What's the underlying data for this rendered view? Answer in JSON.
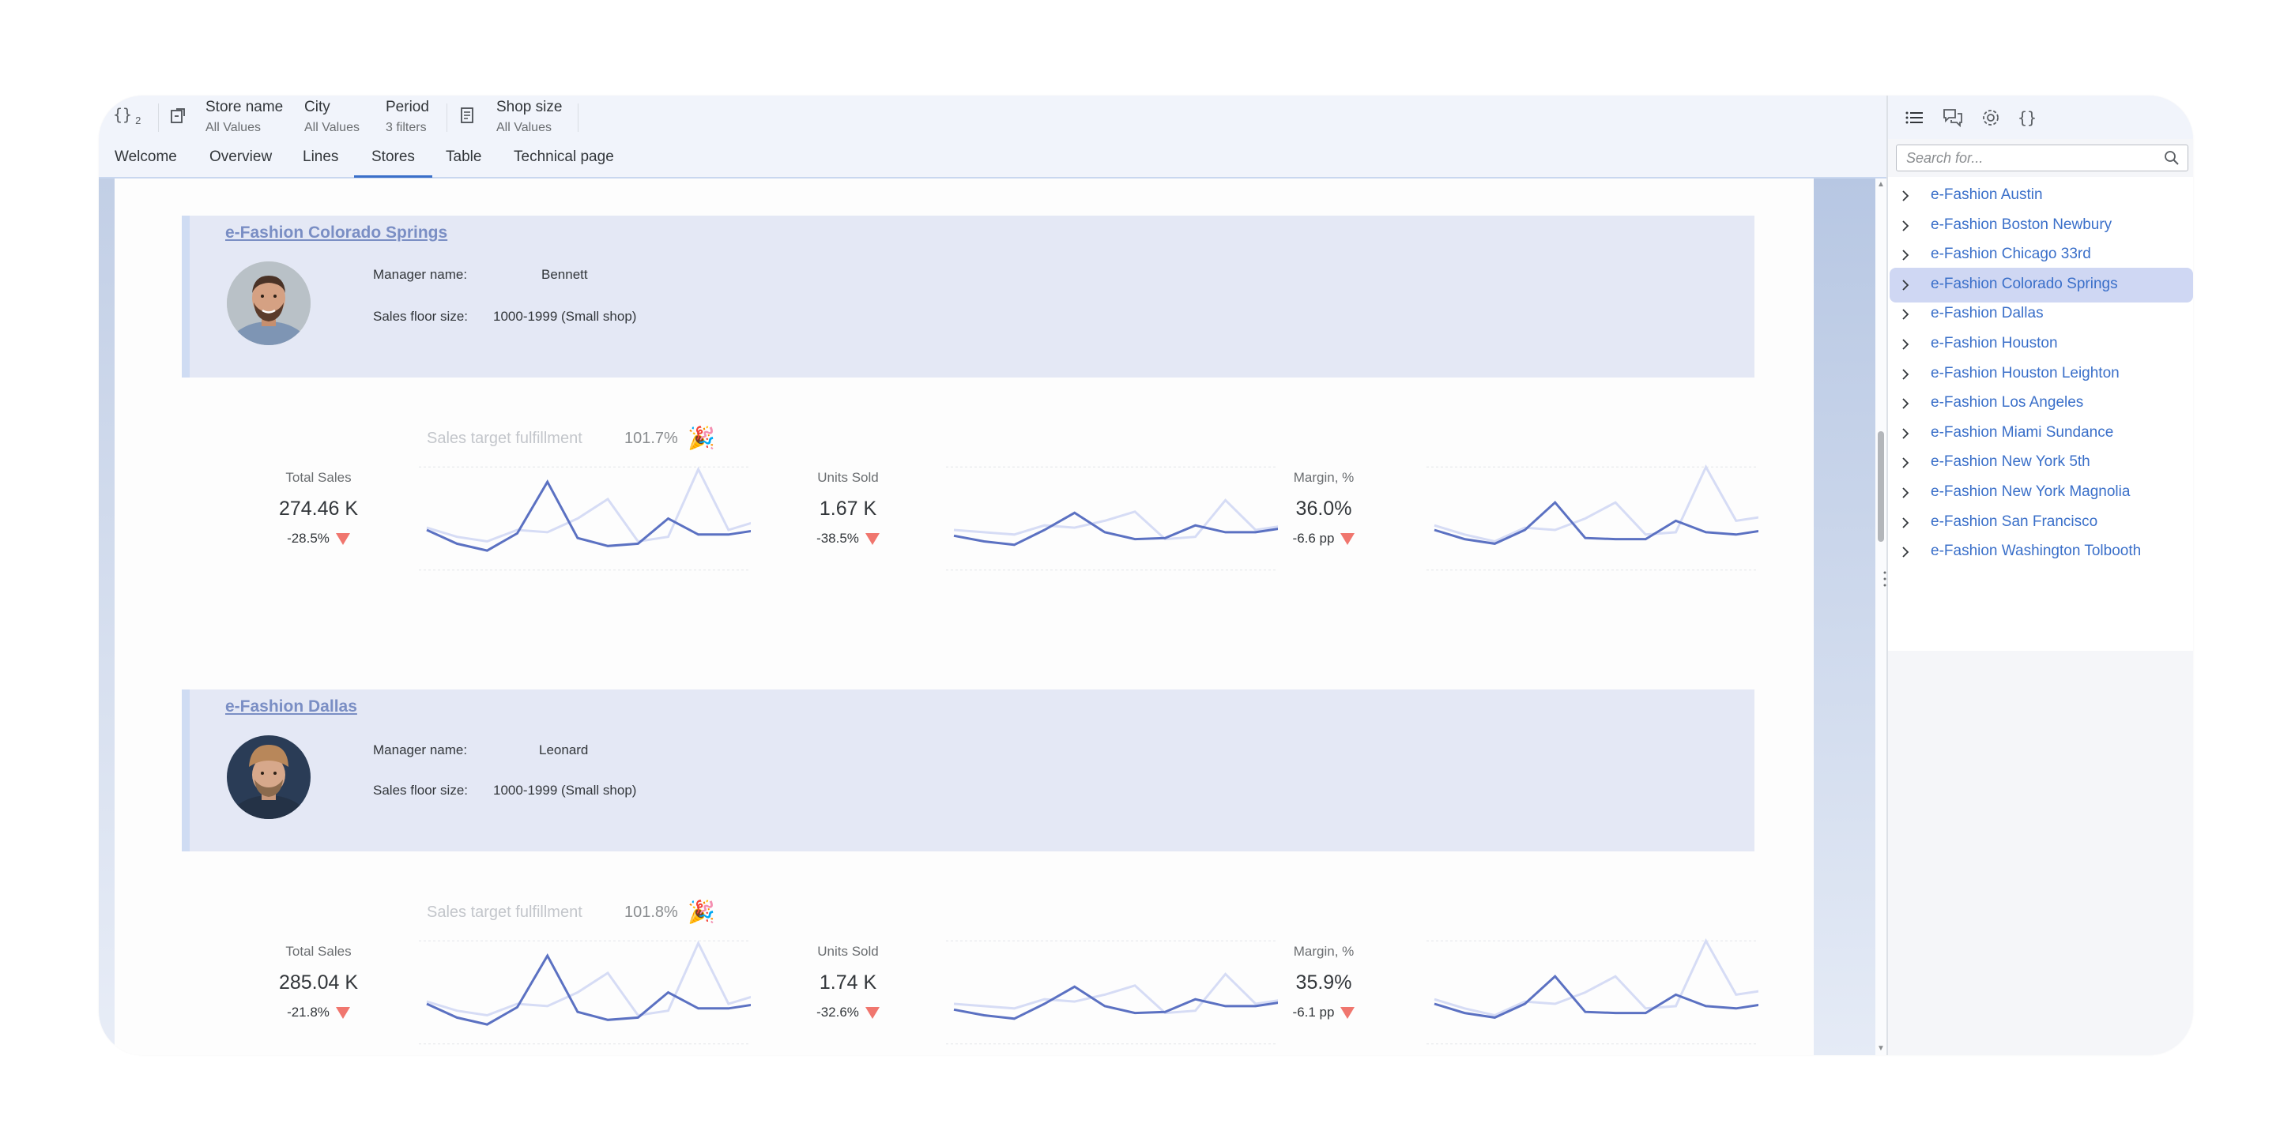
{
  "filter_bar": {
    "variables_label": "{}",
    "variables_count": "2",
    "filters": [
      {
        "label": "Store name",
        "value": "All Values"
      },
      {
        "label": "City",
        "value": "All Values"
      },
      {
        "label": "Period",
        "value": "3 filters"
      },
      {
        "label": "Shop size",
        "value": "All Values"
      }
    ],
    "icons": [
      "variables-icon",
      "input-controls-icon",
      "report-filter-icon"
    ]
  },
  "tabs": [
    {
      "label": "Welcome",
      "active": false
    },
    {
      "label": "Overview",
      "active": false
    },
    {
      "label": "Lines",
      "active": false
    },
    {
      "label": "Stores",
      "active": true
    },
    {
      "label": "Table",
      "active": false
    },
    {
      "label": "Technical page",
      "active": false
    }
  ],
  "stores": [
    {
      "name": "e-Fashion Colorado Springs",
      "manager_label": "Manager name:",
      "manager": "Bennett",
      "floor_label": "Sales floor size:",
      "floor": "1000-1999  (Small shop)",
      "target_label": "Sales target fulfillment",
      "target_value": "101.7%",
      "kpis": [
        {
          "label": "Total Sales",
          "value": "274.46 K",
          "delta": "-28.5%"
        },
        {
          "label": "Units Sold",
          "value": "1.67 K",
          "delta": "-38.5%"
        },
        {
          "label": "Margin, %",
          "value": "36.0%",
          "delta": "-6.6 pp"
        }
      ]
    },
    {
      "name": "e-Fashion Dallas",
      "manager_label": "Manager name:",
      "manager": "Leonard",
      "floor_label": "Sales floor size:",
      "floor": "1000-1999  (Small shop)",
      "target_label": "Sales target fulfillment",
      "target_value": "101.8%",
      "kpis": [
        {
          "label": "Total Sales",
          "value": "285.04 K",
          "delta": "-21.8%"
        },
        {
          "label": "Units Sold",
          "value": "1.74 K",
          "delta": "-32.6%"
        },
        {
          "label": "Margin, %",
          "value": "35.9%",
          "delta": "-6.1 pp"
        }
      ]
    }
  ],
  "colors": {
    "accent": "#3a6fc9",
    "line_current": "#5b71c2",
    "line_previous": "#d6dcf5",
    "negative": "#f0766e",
    "card_bg": "#e4e8f5",
    "selected_bg": "#cfd7f3"
  },
  "right_panel": {
    "tab_icons": [
      "list-icon",
      "comments-icon",
      "settings-icon",
      "variables-icon"
    ],
    "search_placeholder": "Search for...",
    "stores": [
      "e-Fashion Austin",
      "e-Fashion Boston Newbury",
      "e-Fashion Chicago 33rd",
      "e-Fashion Colorado Springs",
      "e-Fashion Dallas",
      "e-Fashion Houston",
      "e-Fashion Houston Leighton",
      "e-Fashion Los Angeles",
      "e-Fashion Miami Sundance",
      "e-Fashion New York 5th",
      "e-Fashion New York Magnolia",
      "e-Fashion San Francisco",
      "e-Fashion Washington Tolbooth"
    ],
    "selected_store": "e-Fashion Colorado Springs"
  }
}
